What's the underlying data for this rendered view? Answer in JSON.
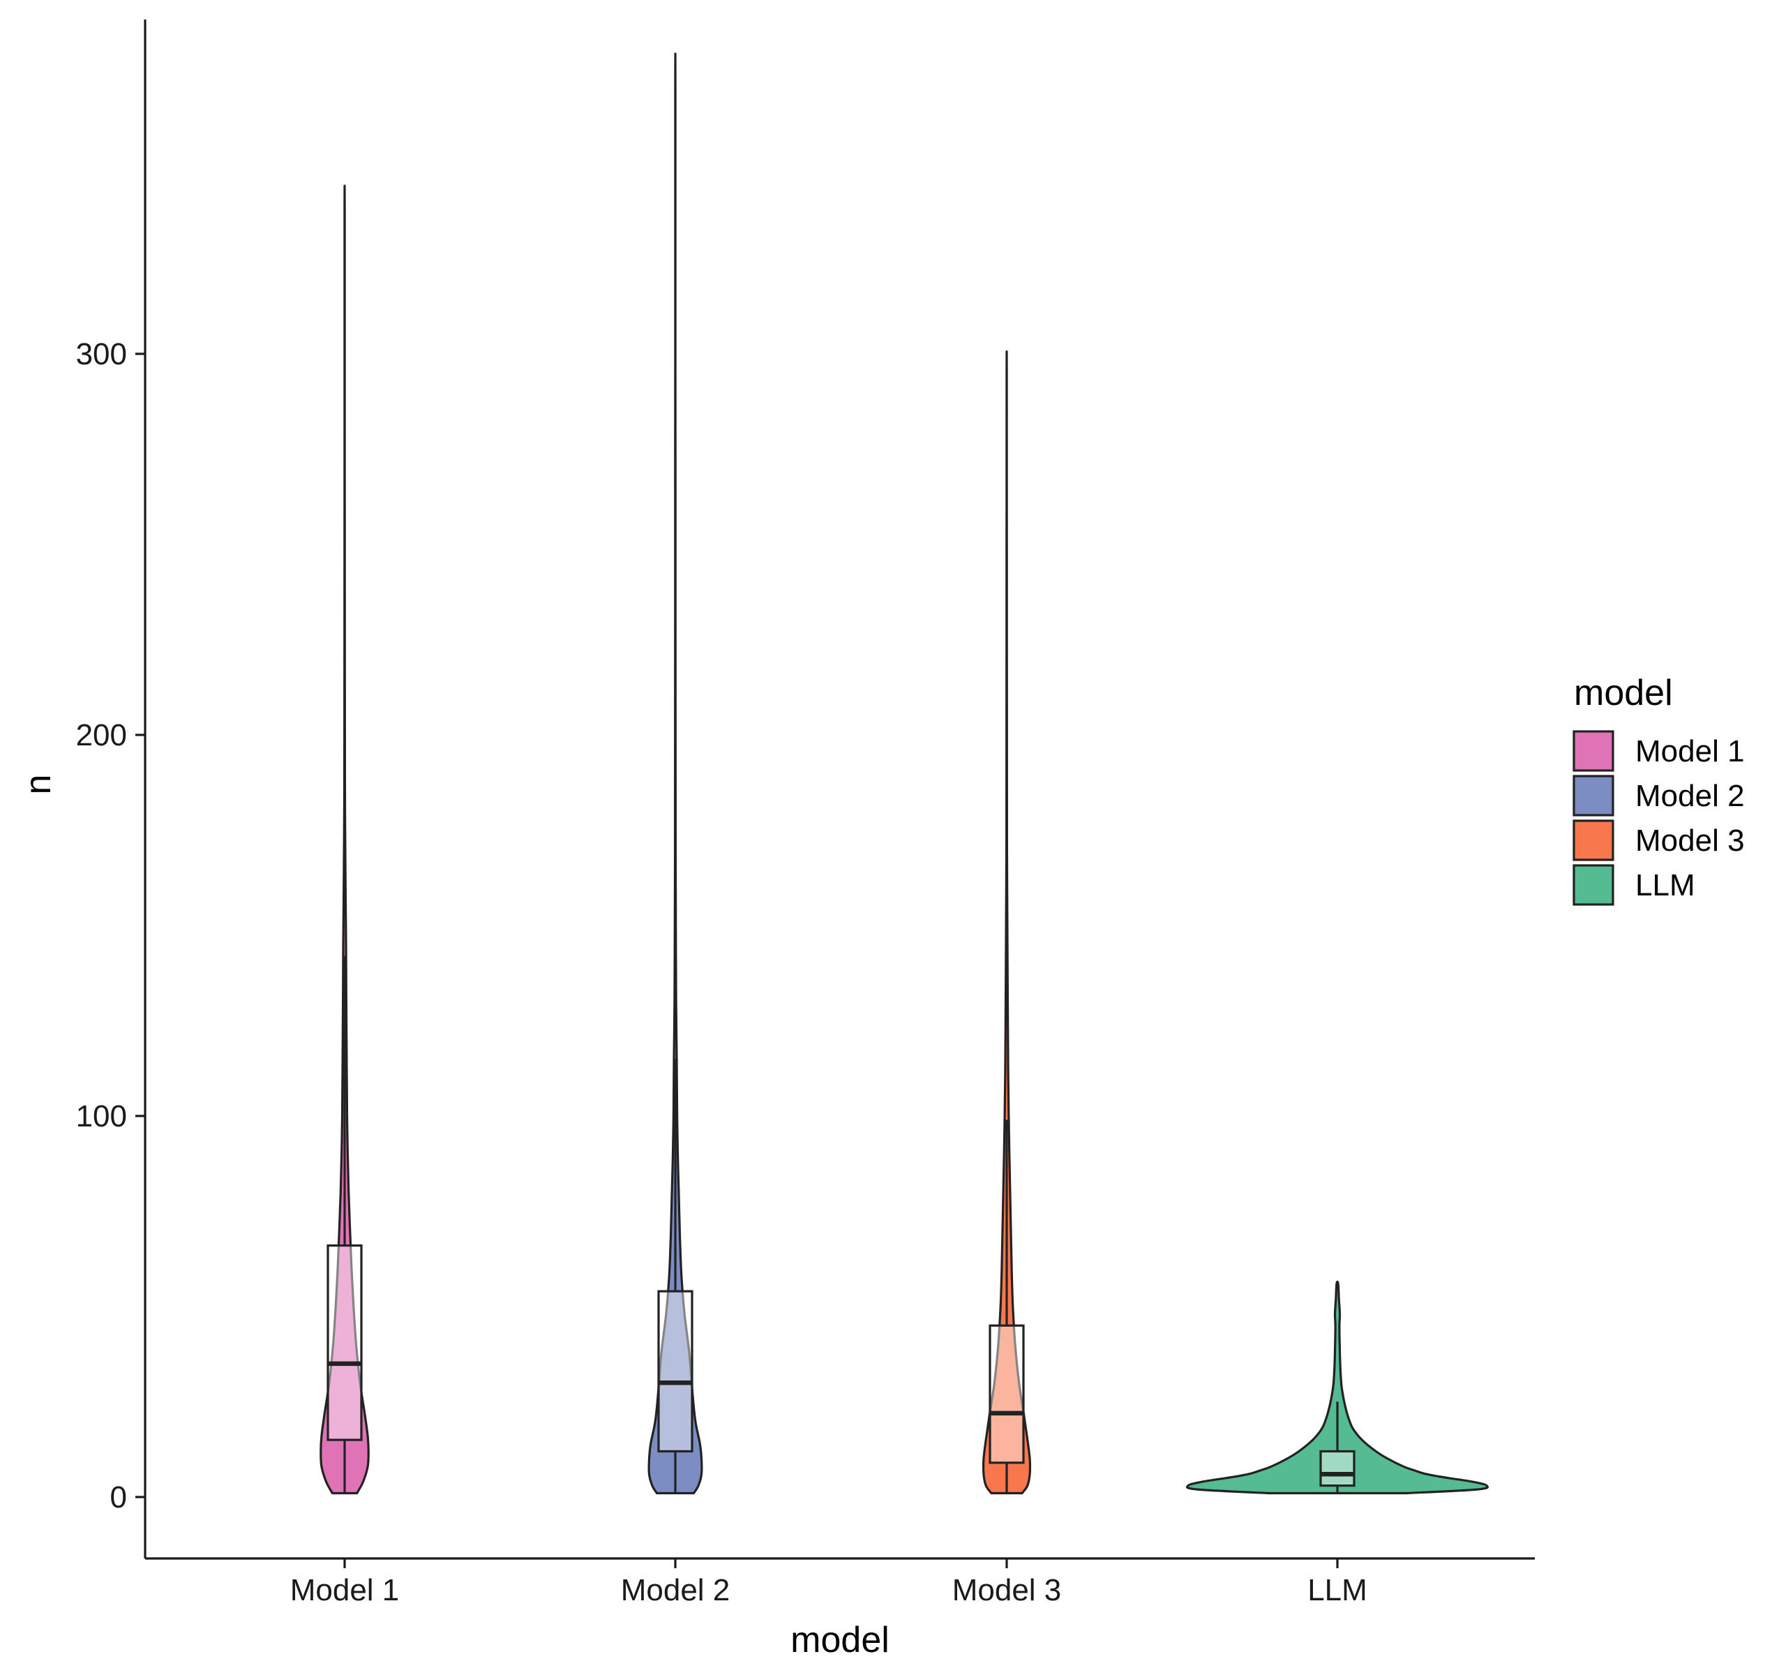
{
  "chart_data": {
    "type": "violin",
    "title": "",
    "xlabel": "model",
    "ylabel": "n",
    "ylim": [
      -17,
      387
    ],
    "y_ticks": [
      0,
      100,
      200,
      300
    ],
    "categories": [
      "Model 1",
      "Model 2",
      "Model 3",
      "LLM"
    ],
    "grid": false,
    "legend": {
      "title": "model",
      "placement": "right",
      "entries": [
        "Model 1",
        "Model 2",
        "Model 3",
        "LLM"
      ]
    },
    "series": [
      {
        "name": "Model 1",
        "color": "#e072b6",
        "box": {
          "q1": 15,
          "median": 35,
          "q3": 66,
          "whisker_low": 1,
          "whisker_high": 142
        },
        "max": 337,
        "density": [
          [
            1,
            0.08
          ],
          [
            4,
            0.12
          ],
          [
            8,
            0.15
          ],
          [
            12,
            0.155
          ],
          [
            16,
            0.15
          ],
          [
            22,
            0.13
          ],
          [
            30,
            0.1
          ],
          [
            40,
            0.075
          ],
          [
            50,
            0.058
          ],
          [
            60,
            0.045
          ],
          [
            70,
            0.035
          ],
          [
            80,
            0.026
          ],
          [
            90,
            0.02
          ],
          [
            100,
            0.016
          ],
          [
            115,
            0.013
          ],
          [
            130,
            0.011
          ],
          [
            145,
            0.009
          ],
          [
            160,
            0.006
          ],
          [
            175,
            0.003
          ],
          [
            190,
            0.002
          ],
          [
            210,
            0.0012
          ],
          [
            240,
            0.0008
          ],
          [
            280,
            0.0006
          ],
          [
            337,
            0.0003
          ]
        ]
      },
      {
        "name": "Model 2",
        "color": "#7b8dc2",
        "box": {
          "q1": 12,
          "median": 30,
          "q3": 54,
          "whisker_low": 1,
          "whisker_high": 115
        },
        "max": 370,
        "density": [
          [
            1,
            0.12
          ],
          [
            3,
            0.15
          ],
          [
            6,
            0.17
          ],
          [
            10,
            0.17
          ],
          [
            14,
            0.16
          ],
          [
            20,
            0.13
          ],
          [
            28,
            0.11
          ],
          [
            38,
            0.09
          ],
          [
            48,
            0.06
          ],
          [
            58,
            0.04
          ],
          [
            68,
            0.03
          ],
          [
            80,
            0.022
          ],
          [
            90,
            0.016
          ],
          [
            100,
            0.012
          ],
          [
            115,
            0.009
          ],
          [
            130,
            0.005
          ],
          [
            150,
            0.003
          ],
          [
            170,
            0.002
          ],
          [
            200,
            0.0012
          ],
          [
            250,
            0.0008
          ],
          [
            300,
            0.0006
          ],
          [
            370,
            0.0003
          ]
        ]
      },
      {
        "name": "Model 3",
        "color": "#f8774d",
        "box": {
          "q1": 9,
          "median": 22,
          "q3": 45,
          "whisker_low": 1,
          "whisker_high": 99
        },
        "max": 295,
        "density": [
          [
            1,
            0.1
          ],
          [
            3,
            0.135
          ],
          [
            6,
            0.15
          ],
          [
            10,
            0.15
          ],
          [
            15,
            0.135
          ],
          [
            22,
            0.11
          ],
          [
            30,
            0.08
          ],
          [
            40,
            0.055
          ],
          [
            50,
            0.04
          ],
          [
            60,
            0.032
          ],
          [
            70,
            0.027
          ],
          [
            80,
            0.022
          ],
          [
            90,
            0.017
          ],
          [
            100,
            0.013
          ],
          [
            110,
            0.01
          ],
          [
            120,
            0.008
          ],
          [
            135,
            0.006
          ],
          [
            150,
            0.004
          ],
          [
            170,
            0.002
          ],
          [
            200,
            0.0012
          ],
          [
            250,
            0.0008
          ],
          [
            295,
            0.0003
          ]
        ]
      },
      {
        "name": "LLM",
        "color": "#55bb92",
        "box": {
          "q1": 3,
          "median": 6,
          "q3": 12,
          "whisker_low": 1,
          "whisker_high": 25
        },
        "max": 56,
        "density": [
          [
            1,
            0.45
          ],
          [
            2,
            0.91
          ],
          [
            3,
            0.97
          ],
          [
            4,
            0.88
          ],
          [
            5,
            0.72
          ],
          [
            6,
            0.58
          ],
          [
            7,
            0.5
          ],
          [
            8,
            0.43
          ],
          [
            10,
            0.33
          ],
          [
            12,
            0.25
          ],
          [
            15,
            0.16
          ],
          [
            18,
            0.1
          ],
          [
            21,
            0.07
          ],
          [
            24,
            0.05
          ],
          [
            27,
            0.035
          ],
          [
            30,
            0.025
          ],
          [
            35,
            0.018
          ],
          [
            40,
            0.015
          ],
          [
            45,
            0.013
          ],
          [
            48,
            0.016
          ],
          [
            52,
            0.01
          ],
          [
            56,
            0.005
          ]
        ]
      }
    ]
  }
}
